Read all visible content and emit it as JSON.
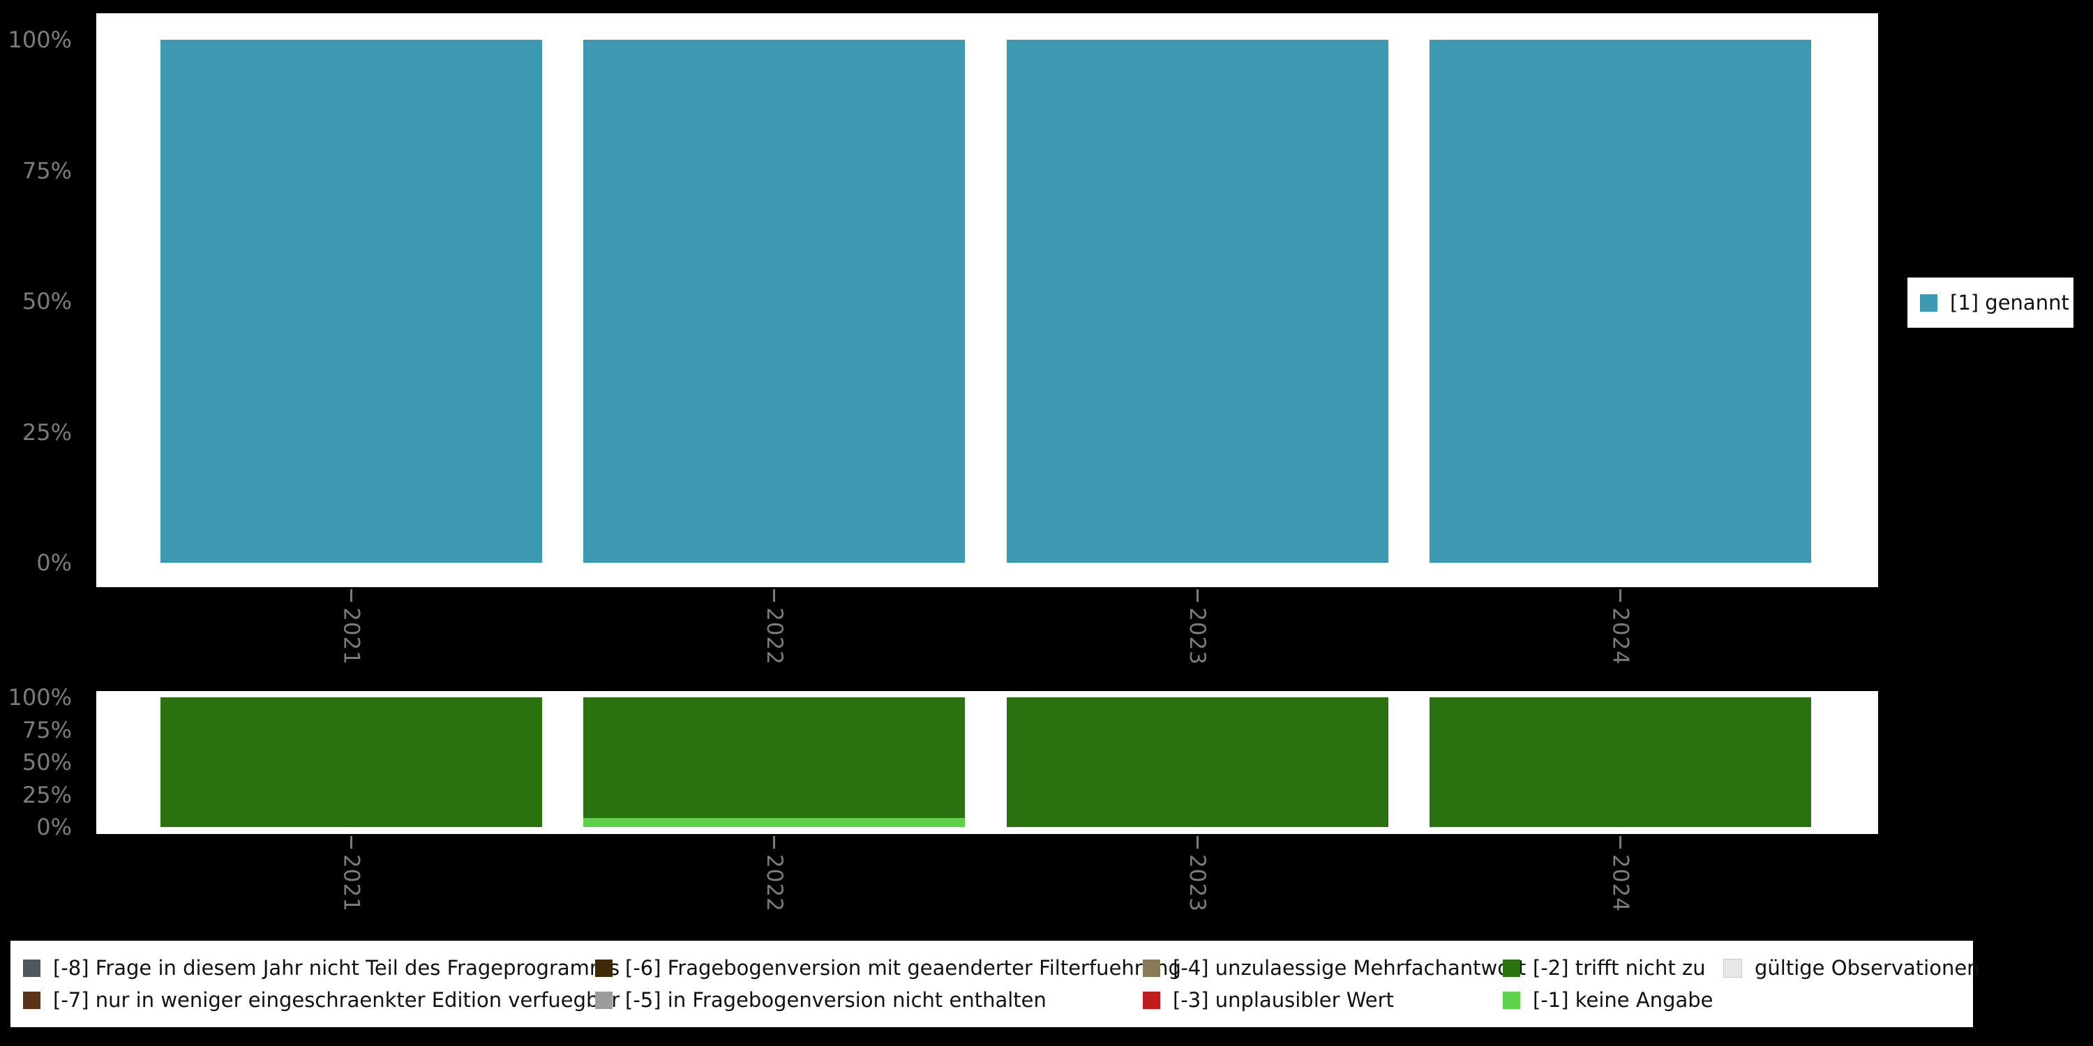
{
  "colors": {
    "background": "#000000",
    "panel": "#ffffff",
    "axis_text": "#7c7c7c",
    "genannt_teal": "#3d98b2",
    "trifft_nicht_zu_green": "#2a7110",
    "keine_angabe_green": "#5ed14b"
  },
  "chart_data": [
    {
      "type": "bar",
      "stacked": true,
      "title": "",
      "categories": [
        "2021",
        "2022",
        "2023",
        "2024"
      ],
      "series": [
        {
          "name": "[1] genannt",
          "color": "#3d98b2",
          "values": [
            100,
            100,
            100,
            100
          ]
        }
      ],
      "ylim": [
        0,
        100
      ],
      "yticks": [
        {
          "value": 0,
          "label": "0%"
        },
        {
          "value": 25,
          "label": "25%"
        },
        {
          "value": 50,
          "label": "50%"
        },
        {
          "value": 75,
          "label": "75%"
        },
        {
          "value": 100,
          "label": "100%"
        }
      ],
      "unit": "percent",
      "grid": false,
      "legend_position": "right"
    },
    {
      "type": "bar",
      "stacked": true,
      "title": "",
      "categories": [
        "2021",
        "2022",
        "2023",
        "2024"
      ],
      "series": [
        {
          "name": "[-1] keine Angabe",
          "color": "#5ed14b",
          "values": [
            0,
            7,
            0,
            0
          ]
        },
        {
          "name": "[-2] trifft nicht zu",
          "color": "#2a7110",
          "values": [
            100,
            93,
            100,
            100
          ]
        }
      ],
      "ylim": [
        0,
        100
      ],
      "yticks": [
        {
          "value": 0,
          "label": "0%"
        },
        {
          "value": 25,
          "label": "25%"
        },
        {
          "value": 50,
          "label": "50%"
        },
        {
          "value": 75,
          "label": "75%"
        },
        {
          "value": 100,
          "label": "100%"
        }
      ],
      "unit": "percent",
      "grid": false,
      "legend_position": "bottom"
    }
  ],
  "legend_right": {
    "items": [
      {
        "label": "[1] genannt",
        "color": "#3d98b2"
      }
    ]
  },
  "legend_bottom": {
    "items": [
      {
        "label": "[-8] Frage in diesem Jahr nicht Teil des Frageprogramms",
        "color": "#4f585e"
      },
      {
        "label": "[-7] nur in weniger eingeschraenkter Edition verfuegbar",
        "color": "#5c3317"
      },
      {
        "label": "[-6] Fragebogenversion mit geaenderter Filterfuehrung",
        "color": "#402905"
      },
      {
        "label": "[-5] in Fragebogenversion nicht enthalten",
        "color": "#9b9b9b"
      },
      {
        "label": "[-4] unzulaessige Mehrfachantwort",
        "color": "#897a59"
      },
      {
        "label": "[-3] unplausibler Wert",
        "color": "#bf1d1d"
      },
      {
        "label": "[-2] trifft nicht zu",
        "color": "#2a7110"
      },
      {
        "label": "[-1] keine Angabe",
        "color": "#5ed14b"
      },
      {
        "label": "gültige Observationen",
        "color": "#e8e8e6",
        "border": "#c8c8c8"
      }
    ]
  }
}
